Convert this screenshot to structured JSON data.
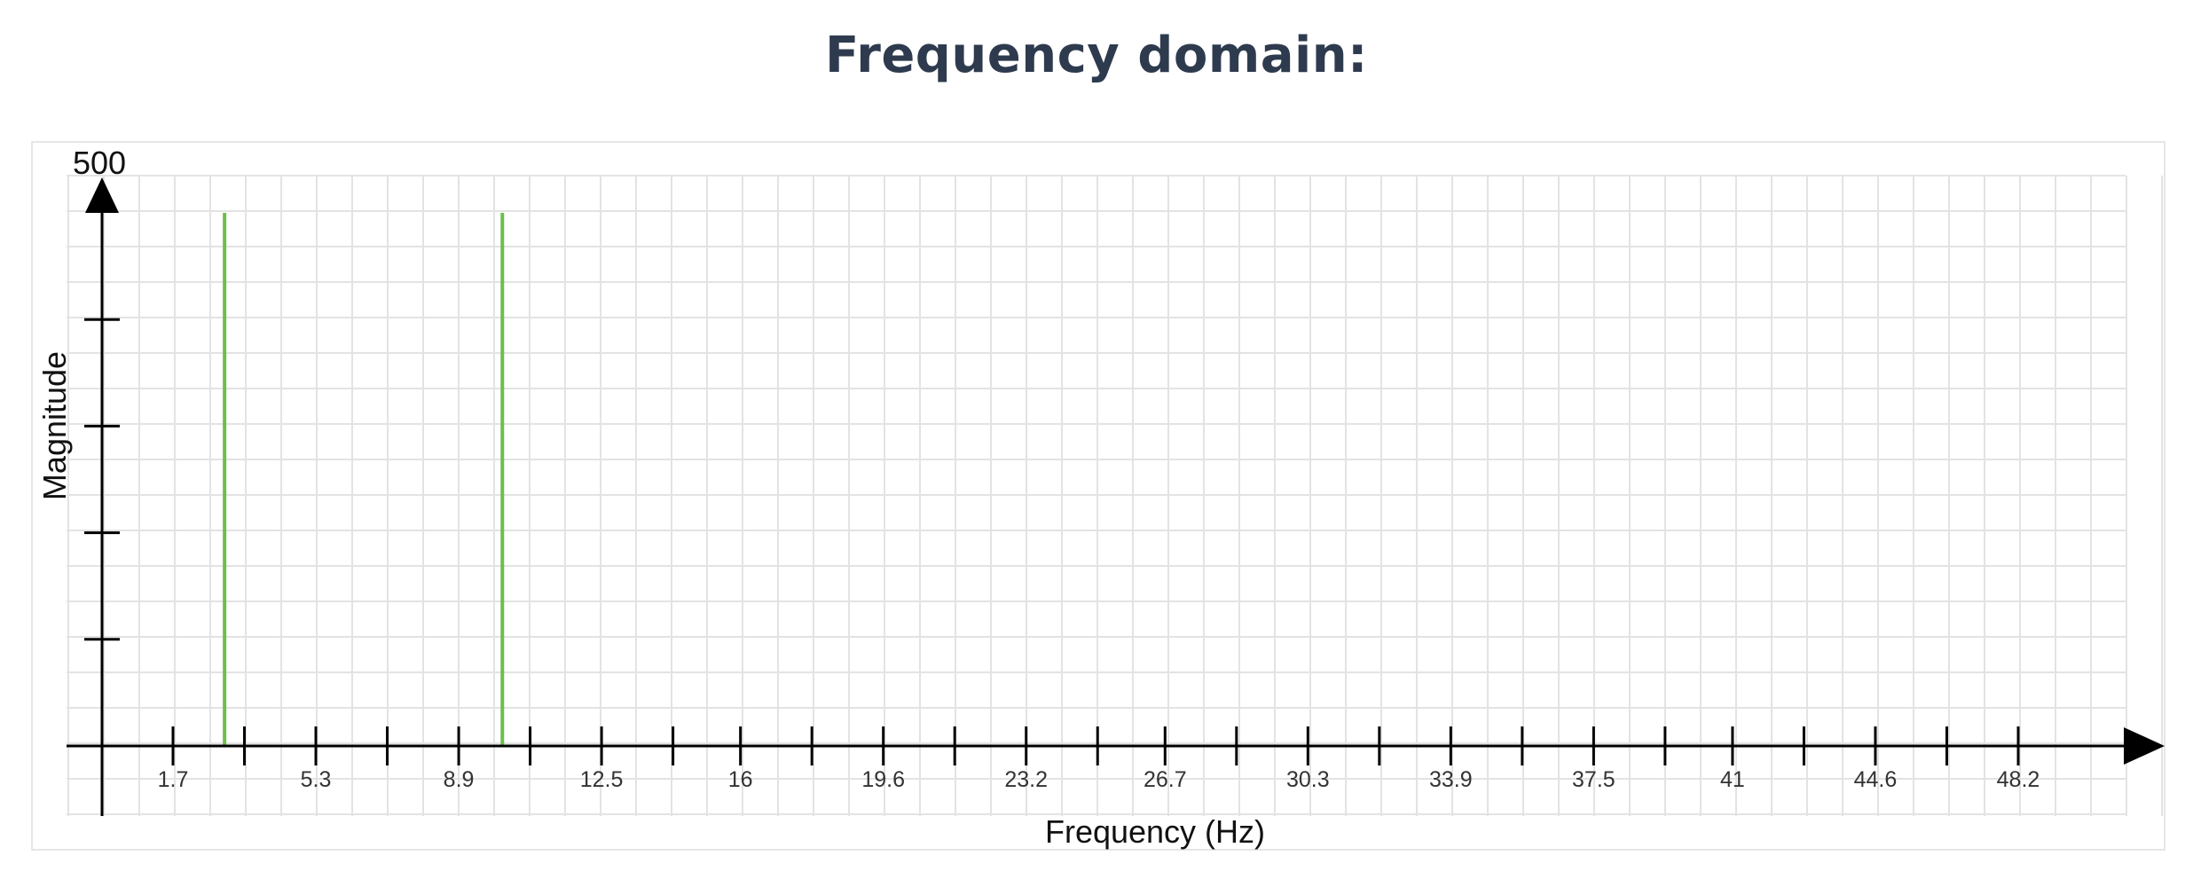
{
  "page": {
    "title": "Frequency domain:"
  },
  "chart_data": {
    "type": "bar",
    "title": "",
    "xlabel": "Frequency (Hz)",
    "ylabel": "Magnitude",
    "ylim": [
      0,
      500
    ],
    "y_top_label": "500",
    "y_tick_count": 5,
    "xlim": [
      0,
      50
    ],
    "x_ticks": [
      1.7,
      3.5,
      5.3,
      7.1,
      8.9,
      10.7,
      12.5,
      14.3,
      16,
      17.8,
      19.6,
      21.4,
      23.2,
      25,
      26.7,
      28.5,
      30.3,
      32.1,
      33.9,
      35.7,
      37.5,
      39.3,
      41,
      42.8,
      44.6,
      46.4,
      48.2
    ],
    "x_tick_labels": [
      "1.7",
      "",
      "5.3",
      "",
      "8.9",
      "",
      "12.5",
      "",
      "16",
      "",
      "19.6",
      "",
      "23.2",
      "",
      "26.7",
      "",
      "30.3",
      "",
      "33.9",
      "",
      "37.5",
      "",
      "41",
      "",
      "44.6",
      "",
      "48.2"
    ],
    "x_label_bands": [
      "1.7",
      "5.3",
      "8.9",
      "12.5",
      "16",
      "19.6",
      "23.2",
      "26.7",
      "30.3",
      "33.9",
      "37.5",
      "41",
      "44.6",
      "48.2"
    ],
    "grid": true,
    "series": [
      {
        "color": "#6cbf4b",
        "points": [
          {
            "x": 3,
            "y": 500
          },
          {
            "x": 10,
            "y": 500
          }
        ]
      }
    ]
  }
}
